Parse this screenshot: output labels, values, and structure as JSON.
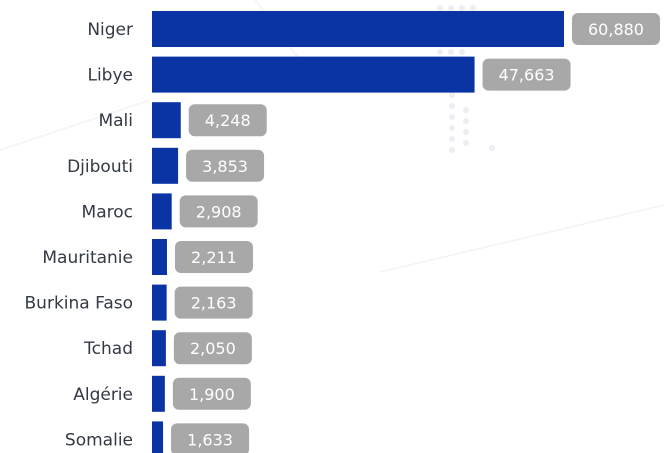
{
  "chart_data": {
    "type": "bar",
    "orientation": "horizontal",
    "categories": [
      "Niger",
      "Libye",
      "Mali",
      "Djibouti",
      "Maroc",
      "Mauritanie",
      "Burkina Faso",
      "Tchad",
      "Algérie",
      "Somalie"
    ],
    "values": [
      60880,
      47663,
      4248,
      3853,
      2908,
      2211,
      2163,
      2050,
      1900,
      1633
    ],
    "value_labels": [
      "60,880",
      "47,663",
      "4,248",
      "3,853",
      "2,908",
      "2,211",
      "2,163",
      "2,050",
      "1,900",
      "1,633"
    ],
    "title": "",
    "xlabel": "",
    "ylabel": "",
    "xlim": [
      0,
      60880
    ],
    "grid": false,
    "legend": "none",
    "colors": {
      "bar": "#0a33a3",
      "label_pill": "#a8a8a8",
      "label_text": "#ffffff",
      "category_text": "#333a44"
    }
  }
}
